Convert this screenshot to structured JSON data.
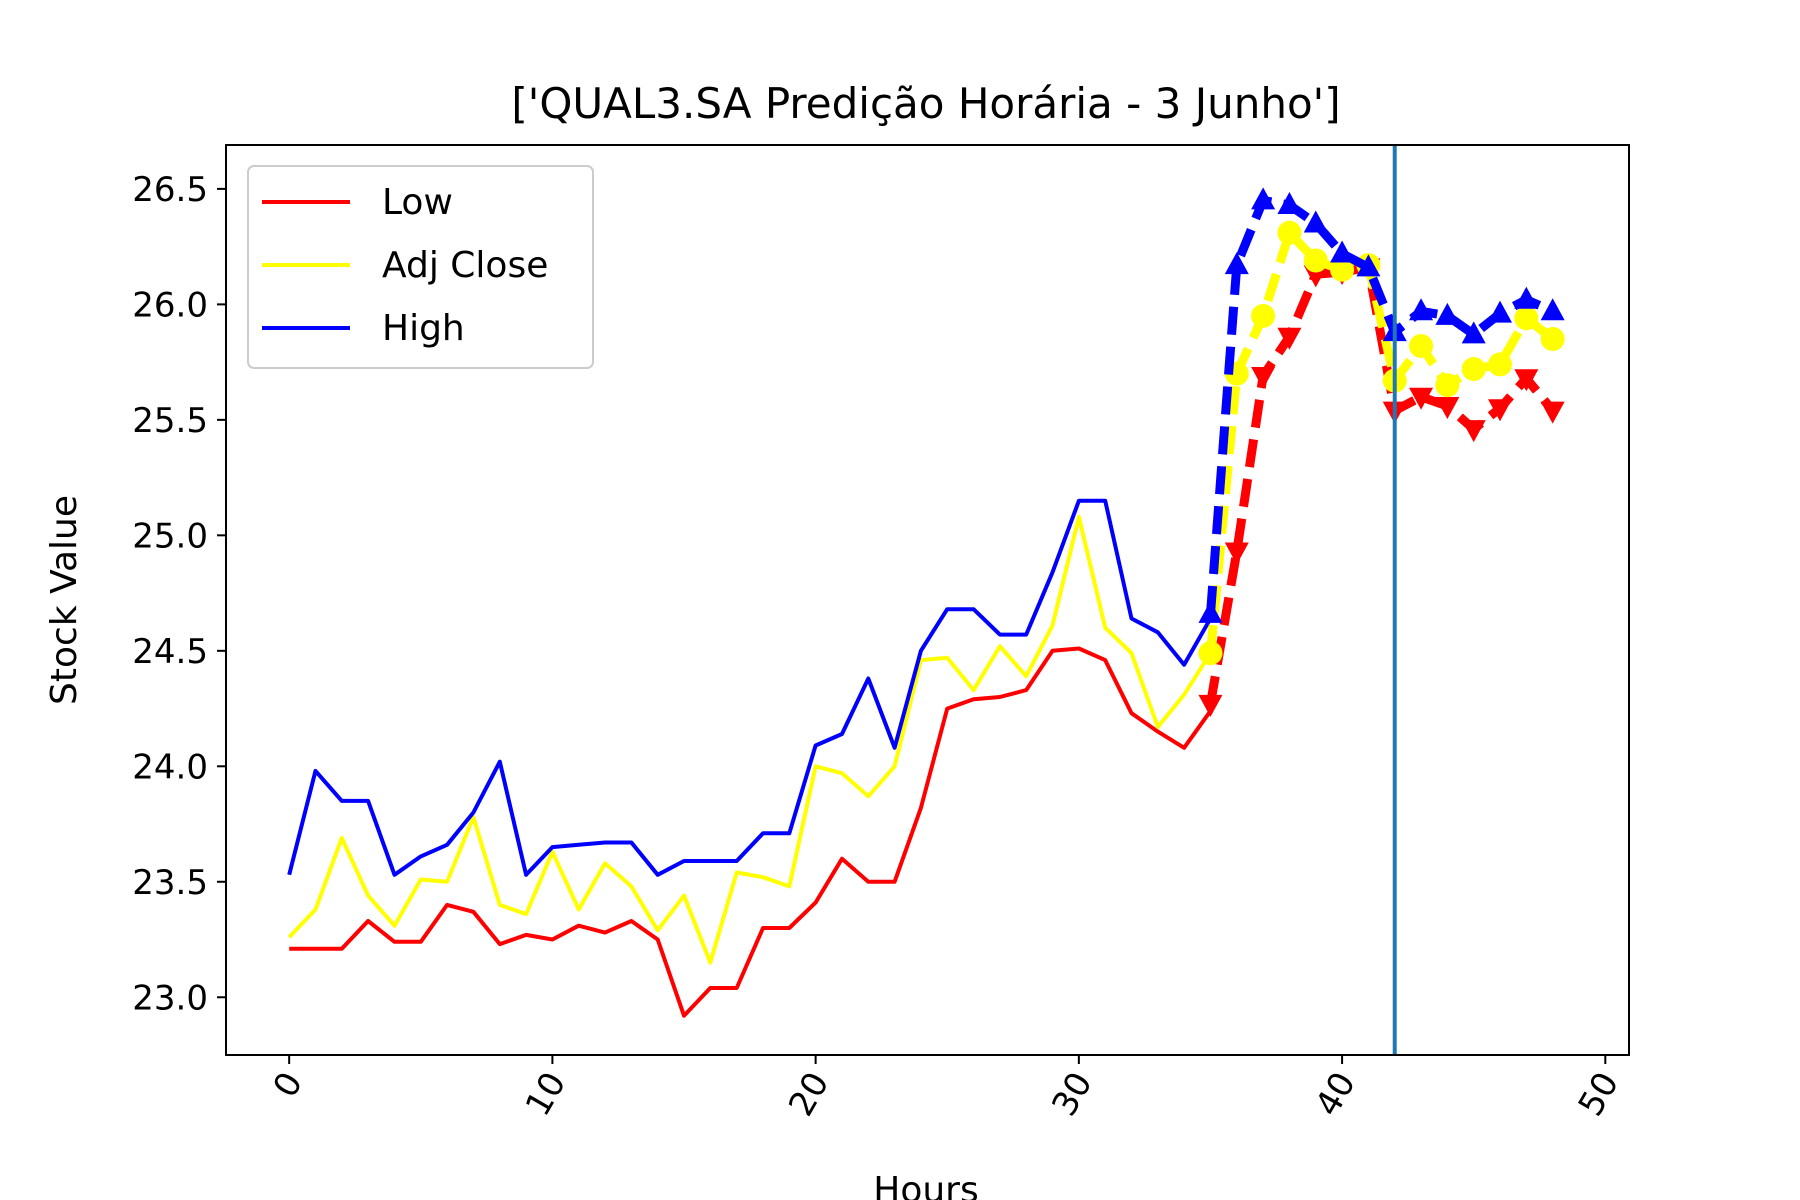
{
  "chart_data": {
    "type": "line",
    "title": "['QUAL3.SA Predição Horária - 3 Junho']",
    "xlabel": "Hours",
    "ylabel": "Stock Value",
    "xlim": [
      -2.4,
      50.9
    ],
    "ylim": [
      22.75,
      26.69
    ],
    "xticks": [
      0,
      10,
      20,
      30,
      40,
      50
    ],
    "yticks": [
      23.0,
      23.5,
      24.0,
      24.5,
      25.0,
      25.5,
      26.0,
      26.5
    ],
    "xtick_labels": [
      "0",
      "10",
      "20",
      "30",
      "40",
      "50"
    ],
    "ytick_labels": [
      "23.0",
      "23.5",
      "24.0",
      "24.5",
      "25.0",
      "25.5",
      "26.0",
      "26.5"
    ],
    "grid": false,
    "legend": {
      "position": "top-left",
      "entries": [
        "Low",
        "Adj Close",
        "High"
      ]
    },
    "vline": {
      "x": 42,
      "color": "#1f77b4"
    },
    "series": [
      {
        "name": "Low",
        "color": "#ff0000",
        "x": [
          0,
          1,
          2,
          3,
          4,
          5,
          6,
          7,
          8,
          9,
          10,
          11,
          12,
          13,
          14,
          15,
          16,
          17,
          18,
          19,
          20,
          21,
          22,
          23,
          24,
          25,
          26,
          27,
          28,
          29,
          30,
          31,
          32,
          33,
          34,
          35
        ],
        "values": [
          23.21,
          23.21,
          23.21,
          23.33,
          23.24,
          23.24,
          23.4,
          23.37,
          23.23,
          23.27,
          23.25,
          23.31,
          23.28,
          23.33,
          23.25,
          22.92,
          23.04,
          23.04,
          23.3,
          23.3,
          23.41,
          23.6,
          23.5,
          23.5,
          23.82,
          24.25,
          24.29,
          24.3,
          24.33,
          24.5,
          24.51,
          24.46,
          24.23,
          24.15,
          24.08,
          24.24
        ]
      },
      {
        "name": "Adj Close",
        "color": "#ffff00",
        "x": [
          0,
          1,
          2,
          3,
          4,
          5,
          6,
          7,
          8,
          9,
          10,
          11,
          12,
          13,
          14,
          15,
          16,
          17,
          18,
          19,
          20,
          21,
          22,
          23,
          24,
          25,
          26,
          27,
          28,
          29,
          30,
          31,
          32,
          33,
          34,
          35
        ],
        "values": [
          23.26,
          23.38,
          23.69,
          23.44,
          23.31,
          23.51,
          23.5,
          23.78,
          23.4,
          23.36,
          23.63,
          23.38,
          23.58,
          23.48,
          23.29,
          23.44,
          23.15,
          23.54,
          23.52,
          23.48,
          24.0,
          23.97,
          23.87,
          24.0,
          24.46,
          24.47,
          24.33,
          24.52,
          24.39,
          24.61,
          25.08,
          24.6,
          24.49,
          24.17,
          24.31,
          24.49
        ]
      },
      {
        "name": "High",
        "color": "#0000ff",
        "x": [
          0,
          1,
          2,
          3,
          4,
          5,
          6,
          7,
          8,
          9,
          10,
          11,
          12,
          13,
          14,
          15,
          16,
          17,
          18,
          19,
          20,
          21,
          22,
          23,
          24,
          25,
          26,
          27,
          28,
          29,
          30,
          31,
          32,
          33,
          34,
          35
        ],
        "values": [
          23.53,
          23.98,
          23.85,
          23.85,
          23.53,
          23.61,
          23.66,
          23.8,
          24.02,
          23.53,
          23.65,
          23.66,
          23.67,
          23.67,
          23.53,
          23.59,
          23.59,
          23.59,
          23.71,
          23.71,
          24.09,
          24.14,
          24.38,
          24.08,
          24.5,
          24.68,
          24.68,
          24.57,
          24.57,
          24.84,
          25.15,
          25.15,
          24.64,
          24.58,
          24.44,
          24.64
        ]
      },
      {
        "name": "",
        "color": "#ff0000",
        "style": "dashed",
        "marker": "triangle-down",
        "x": [
          35,
          36,
          37,
          38,
          39,
          40,
          41,
          42,
          43,
          44,
          45,
          46,
          47,
          48
        ],
        "values": [
          24.27,
          24.93,
          25.69,
          25.86,
          26.13,
          26.14,
          26.16,
          25.54,
          25.6,
          25.56,
          25.46,
          25.55,
          25.68,
          25.54
        ]
      },
      {
        "name": "",
        "color": "#ffff00",
        "style": "dashed",
        "marker": "circle",
        "x": [
          35,
          36,
          37,
          38,
          39,
          40,
          41,
          42,
          43,
          44,
          45,
          46,
          47,
          48
        ],
        "values": [
          24.49,
          25.7,
          25.95,
          26.31,
          26.19,
          26.15,
          26.17,
          25.67,
          25.82,
          25.65,
          25.72,
          25.74,
          25.94,
          25.85
        ]
      },
      {
        "name": "",
        "color": "#0000ff",
        "style": "dashed",
        "marker": "triangle-up",
        "x": [
          35,
          36,
          37,
          38,
          39,
          40,
          41,
          42,
          43,
          44,
          45,
          46,
          47,
          48
        ],
        "values": [
          24.66,
          26.17,
          26.45,
          26.43,
          26.35,
          26.22,
          26.16,
          25.88,
          25.97,
          25.95,
          25.87,
          25.96,
          26.02,
          25.97
        ]
      }
    ]
  }
}
